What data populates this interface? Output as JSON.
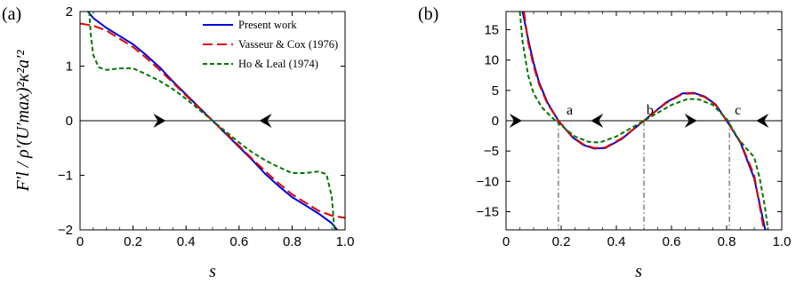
{
  "chart_data": [
    {
      "type": "line",
      "panel_label": "(a)",
      "xlabel": "s",
      "ylabel": "F′l / ρ′(U′max)²κ²a′²",
      "xlim": [
        0,
        1.0
      ],
      "ylim": [
        -2,
        2
      ],
      "xticks": [
        "0",
        "0.2",
        "0.4",
        "0.6",
        "0.8",
        "1.0"
      ],
      "yticks": [
        "−2",
        "−1",
        "0",
        "1",
        "2"
      ],
      "legend_position": "top-right",
      "series": [
        {
          "name": "Present work",
          "color": "#0000dd",
          "dash": "solid",
          "x": [
            0.03,
            0.05,
            0.1,
            0.15,
            0.2,
            0.25,
            0.3,
            0.35,
            0.4,
            0.45,
            0.5,
            0.55,
            0.6,
            0.65,
            0.7,
            0.75,
            0.8,
            0.85,
            0.9,
            0.95,
            0.97
          ],
          "y": [
            2.0,
            1.88,
            1.7,
            1.55,
            1.4,
            1.2,
            0.98,
            0.72,
            0.48,
            0.24,
            0.0,
            -0.24,
            -0.48,
            -0.72,
            -0.98,
            -1.2,
            -1.4,
            -1.55,
            -1.7,
            -1.88,
            -2.0
          ]
        },
        {
          "name": "Vasseur & Cox (1976)",
          "color": "#dd0000",
          "dash": "long-dash",
          "x": [
            0.0,
            0.05,
            0.1,
            0.15,
            0.2,
            0.25,
            0.3,
            0.35,
            0.4,
            0.45,
            0.5,
            0.55,
            0.6,
            0.65,
            0.7,
            0.75,
            0.8,
            0.85,
            0.9,
            0.95,
            1.0
          ],
          "y": [
            1.78,
            1.74,
            1.65,
            1.5,
            1.35,
            1.15,
            0.93,
            0.7,
            0.46,
            0.23,
            0.0,
            -0.23,
            -0.46,
            -0.7,
            -0.93,
            -1.15,
            -1.35,
            -1.5,
            -1.65,
            -1.74,
            -1.78
          ]
        },
        {
          "name": "Ho & Leal (1974)",
          "color": "#007700",
          "dash": "short-dash",
          "x": [
            0.035,
            0.04,
            0.05,
            0.07,
            0.1,
            0.15,
            0.2,
            0.25,
            0.3,
            0.35,
            0.4,
            0.45,
            0.5,
            0.55,
            0.6,
            0.65,
            0.7,
            0.75,
            0.8,
            0.85,
            0.9,
            0.93,
            0.95,
            0.96
          ],
          "y": [
            2.0,
            1.6,
            1.2,
            0.98,
            0.93,
            0.96,
            0.96,
            0.85,
            0.73,
            0.58,
            0.4,
            0.2,
            0.0,
            -0.2,
            -0.4,
            -0.58,
            -0.73,
            -0.85,
            -0.96,
            -0.96,
            -0.93,
            -0.98,
            -1.4,
            -2.0
          ]
        }
      ],
      "arrows": [
        {
          "x": 0.3,
          "y": 0,
          "direction": "right"
        },
        {
          "x": 0.7,
          "y": 0,
          "direction": "left"
        }
      ]
    },
    {
      "type": "line",
      "panel_label": "(b)",
      "xlabel": "s",
      "ylabel": "",
      "xlim": [
        0,
        1.0
      ],
      "ylim": [
        -18,
        18
      ],
      "xticks": [
        "0",
        "0.2",
        "0.4",
        "0.6",
        "0.8",
        "1.0"
      ],
      "yticks": [
        "−15",
        "−10",
        "−5",
        "0",
        "5",
        "10",
        "15"
      ],
      "series": [
        {
          "name": "",
          "color": "#0000dd",
          "dash": "solid",
          "x": [
            0.06,
            0.08,
            0.1,
            0.12,
            0.15,
            0.19,
            0.24,
            0.28,
            0.32,
            0.36,
            0.42,
            0.5,
            0.58,
            0.64,
            0.68,
            0.72,
            0.76,
            0.8,
            0.85,
            0.9,
            0.94
          ],
          "y": [
            18,
            13.5,
            9.5,
            6.3,
            3.0,
            0.0,
            -2.7,
            -4.0,
            -4.6,
            -4.5,
            -3.0,
            0.0,
            3.0,
            4.5,
            4.6,
            4.0,
            2.7,
            0.0,
            -3.6,
            -9.5,
            -18
          ]
        },
        {
          "name": "",
          "color": "#dd0000",
          "dash": "long-dash",
          "x": [
            0.065,
            0.08,
            0.1,
            0.12,
            0.15,
            0.19,
            0.24,
            0.28,
            0.32,
            0.36,
            0.42,
            0.5,
            0.58,
            0.64,
            0.68,
            0.72,
            0.76,
            0.8,
            0.85,
            0.9,
            0.935
          ],
          "y": [
            18,
            13.0,
            9.0,
            6.0,
            2.8,
            0.0,
            -2.6,
            -3.9,
            -4.5,
            -4.4,
            -2.9,
            0.0,
            2.9,
            4.4,
            4.5,
            3.9,
            2.6,
            0.0,
            -3.5,
            -9.0,
            -18
          ]
        },
        {
          "name": "",
          "color": "#007700",
          "dash": "short-dash",
          "x": [
            0.05,
            0.06,
            0.08,
            0.1,
            0.13,
            0.16,
            0.2,
            0.25,
            0.3,
            0.34,
            0.4,
            0.5,
            0.6,
            0.66,
            0.7,
            0.75,
            0.8,
            0.84,
            0.87,
            0.9,
            0.92,
            0.94,
            0.95
          ],
          "y": [
            18,
            13.0,
            7.5,
            4.5,
            2.2,
            0.8,
            -0.8,
            -2.6,
            -3.5,
            -3.6,
            -2.6,
            0.0,
            2.6,
            3.6,
            3.5,
            2.6,
            0.3,
            -2.8,
            -4.5,
            -6.0,
            -9.5,
            -14.5,
            -18
          ]
        }
      ],
      "vlines": [
        0.19,
        0.5,
        0.81
      ],
      "points": [
        {
          "label": "a",
          "x": 0.2,
          "y": 0
        },
        {
          "label": "b",
          "x": 0.49,
          "y": 0
        },
        {
          "label": "c",
          "x": 0.81,
          "y": 0
        }
      ],
      "arrows": [
        {
          "x": 0.035,
          "y": 0,
          "direction": "right"
        },
        {
          "x": 0.33,
          "y": 0,
          "direction": "left"
        },
        {
          "x": 0.67,
          "y": 0,
          "direction": "right"
        },
        {
          "x": 0.93,
          "y": 0,
          "direction": "left"
        }
      ]
    }
  ]
}
